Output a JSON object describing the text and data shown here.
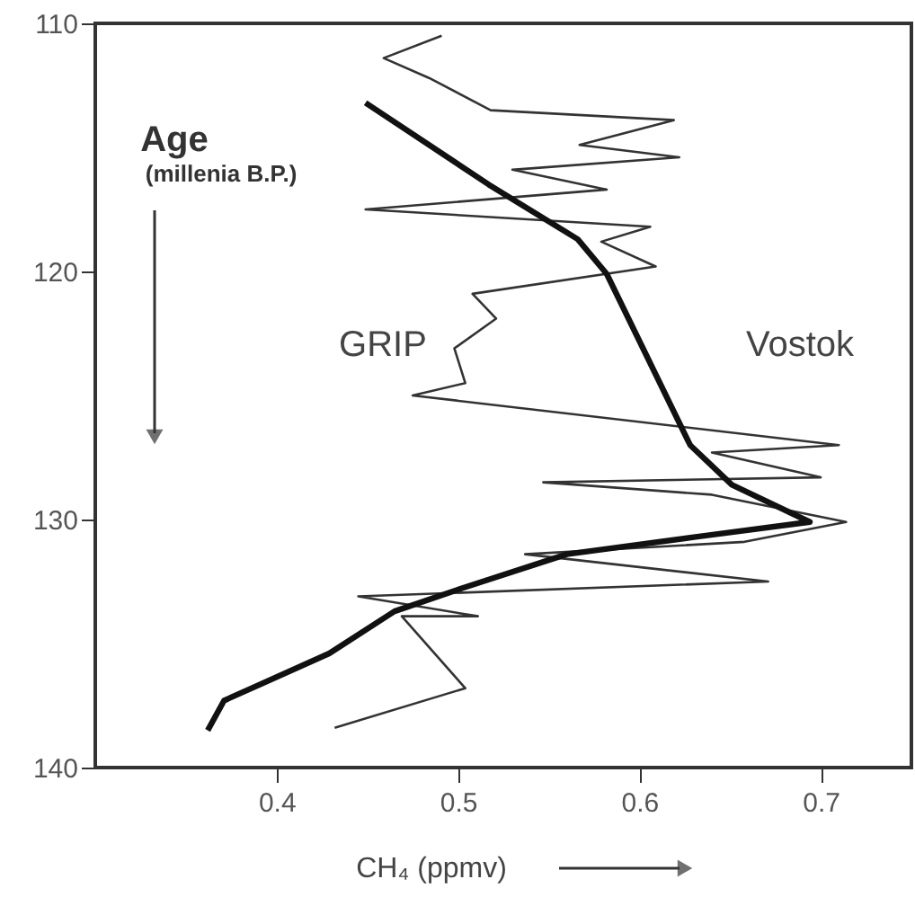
{
  "chart_data": {
    "type": "line",
    "xlabel": "CH₄ (ppmv)",
    "annotations": [
      "Age",
      "(millenia B.P.)"
    ],
    "xlim": [
      0.3,
      0.75
    ],
    "xticks": [
      0.4,
      0.5,
      0.6,
      0.7
    ],
    "ylim": [
      140,
      110
    ],
    "yticks": [
      110,
      120,
      130,
      140
    ],
    "grid": false,
    "marker": "none",
    "line_style": "solid",
    "series": [
      {
        "name": "GRIP",
        "color": "#333333",
        "x": [
          0.491,
          0.459,
          0.484,
          0.518,
          0.619,
          0.567,
          0.622,
          0.53,
          0.582,
          0.449,
          0.606,
          0.579,
          0.609,
          0.508,
          0.521,
          0.498,
          0.504,
          0.475,
          0.71,
          0.64,
          0.7,
          0.547,
          0.64,
          0.714,
          0.658,
          0.537,
          0.671,
          0.445,
          0.511,
          0.469,
          0.504,
          0.432
        ],
        "values": [
          110.5,
          111.4,
          112.2,
          113.5,
          113.9,
          114.9,
          115.4,
          115.9,
          116.7,
          117.5,
          118.2,
          118.8,
          119.8,
          120.9,
          121.9,
          123.1,
          124.5,
          125.0,
          127.0,
          127.3,
          128.3,
          128.5,
          129.0,
          130.1,
          130.9,
          131.4,
          132.5,
          133.1,
          133.9,
          133.9,
          136.8,
          138.4
        ]
      },
      {
        "name": "Vostok",
        "color": "#111111",
        "x": [
          0.449,
          0.517,
          0.566,
          0.582,
          0.628,
          0.651,
          0.694,
          0.631,
          0.56,
          0.501,
          0.465,
          0.429,
          0.371,
          0.362
        ],
        "values": [
          113.2,
          116.5,
          118.7,
          120.1,
          127.0,
          128.6,
          130.1,
          130.7,
          131.4,
          132.8,
          133.7,
          135.4,
          137.3,
          138.5
        ]
      }
    ]
  }
}
